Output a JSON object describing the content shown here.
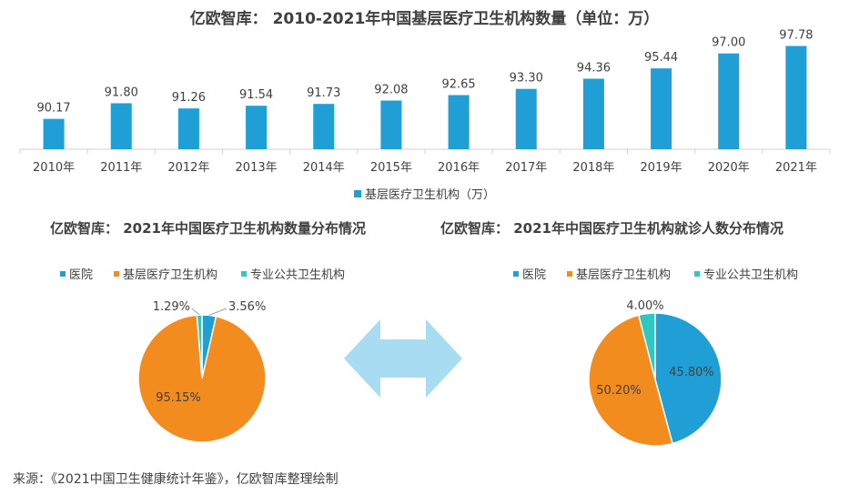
{
  "titles": {
    "main": "亿欧智库： 2010-2021年中国基层医疗卫生机构数量（单位：万）",
    "left": "亿欧智库： 2021年中国医疗卫生机构数量分布情况",
    "right": "亿欧智库： 2021年中国医疗卫生机构就诊人数分布情况"
  },
  "source": "来源：《2021中国卫生健康统计年鉴》，亿欧智库整理绘制",
  "colors": {
    "bar": "#1f9fd6",
    "hospital": "#1f9fd6",
    "grassroots": "#f28c1e",
    "public": "#2fc7c2",
    "arrow": "#a8dcf2"
  },
  "chart_data": [
    {
      "type": "bar",
      "title": "亿欧智库： 2010-2021年中国基层医疗卫生机构数量（单位：万）",
      "categories": [
        "2010年",
        "2011年",
        "2012年",
        "2013年",
        "2014年",
        "2015年",
        "2016年",
        "2017年",
        "2018年",
        "2019年",
        "2020年",
        "2021年"
      ],
      "series": [
        {
          "name": "基层医疗卫生机构（万）",
          "values": [
            90.17,
            91.8,
            91.26,
            91.54,
            91.73,
            92.08,
            92.65,
            93.3,
            94.36,
            95.44,
            97.0,
            97.78
          ]
        }
      ],
      "value_labels": [
        "90.17",
        "91.80",
        "91.26",
        "91.54",
        "91.73",
        "92.08",
        "92.65",
        "93.30",
        "94.36",
        "95.44",
        "97.00",
        "97.78"
      ],
      "legend": "bottom"
    },
    {
      "type": "pie",
      "title": "亿欧智库： 2021年中国医疗卫生机构数量分布情况",
      "categories": [
        "医院",
        "基层医疗卫生机构",
        "专业公共卫生机构"
      ],
      "values": [
        3.56,
        95.15,
        1.29
      ],
      "value_labels": [
        "3.56%",
        "95.15%",
        "1.29%"
      ],
      "legend": "top"
    },
    {
      "type": "pie",
      "title": "亿欧智库： 2021年中国医疗卫生机构就诊人数分布情况",
      "categories": [
        "医院",
        "基层医疗卫生机构",
        "专业公共卫生机构"
      ],
      "values": [
        45.8,
        50.2,
        4.0
      ],
      "value_labels": [
        "45.80%",
        "50.20%",
        "4.00%"
      ],
      "legend": "top"
    }
  ]
}
